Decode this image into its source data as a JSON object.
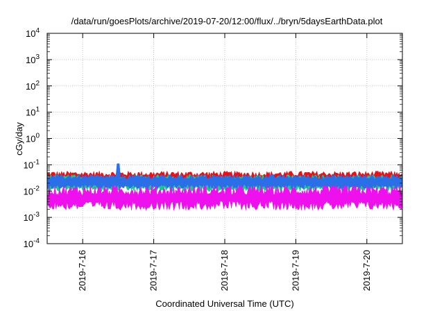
{
  "chart_data": {
    "type": "area",
    "title": "/data/run/goesPlots/archive/2019-07-20/12:00/flux/../bryn/5daysEarthData.plot",
    "xlabel": "Coordinated Universal Time (UTC)",
    "ylabel": "cGy/day",
    "y_scale": "log",
    "ylim": [
      0.0001,
      10000
    ],
    "y_ticks": [
      {
        "value": 0.0001,
        "base": "10",
        "exp": "-4"
      },
      {
        "value": 0.001,
        "base": "10",
        "exp": "-3"
      },
      {
        "value": 0.01,
        "base": "10",
        "exp": "-2"
      },
      {
        "value": 0.1,
        "base": "10",
        "exp": "-1"
      },
      {
        "value": 1,
        "base": "10",
        "exp": "0"
      },
      {
        "value": 10,
        "base": "10",
        "exp": "1"
      },
      {
        "value": 100,
        "base": "10",
        "exp": "2"
      },
      {
        "value": 1000,
        "base": "10",
        "exp": "3"
      },
      {
        "value": 10000,
        "base": "10",
        "exp": "4"
      }
    ],
    "xlim": [
      "2019-07-15 12:00",
      "2019-07-20 12:00"
    ],
    "x_ticks": [
      "2019-7-16",
      "2019-7-17",
      "2019-7-18",
      "2019-7-19",
      "2019-7-20"
    ],
    "grid": true,
    "series": [
      {
        "color": "#e8111b",
        "mean": 0.032,
        "spread": 0.35
      },
      {
        "color": "#19c98e",
        "mean": 0.022,
        "spread": 0.4
      },
      {
        "color": "#2a6fe8",
        "mean": 0.025,
        "spread": 0.3
      },
      {
        "color": "#ee11ee",
        "mean": 0.006,
        "spread": 0.65
      }
    ],
    "peak": {
      "x": "2019-07-16 12:00",
      "value": 0.11
    }
  }
}
